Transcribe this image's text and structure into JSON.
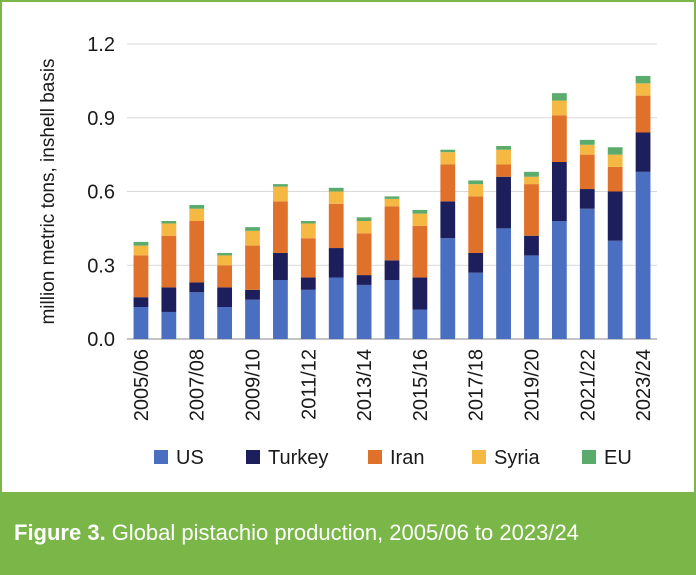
{
  "chart_data": {
    "type": "bar",
    "stacked": true,
    "categories": [
      "2005/06",
      "2006/07",
      "2007/08",
      "2008/09",
      "2009/10",
      "2010/11",
      "2011/12",
      "2012/13",
      "2013/14",
      "2014/15",
      "2015/16",
      "2016/17",
      "2017/18",
      "2018/19",
      "2019/20",
      "2020/21",
      "2021/22",
      "2022/23",
      "2023/24"
    ],
    "tick_labels_shown": [
      "2005/06",
      "2007/08",
      "2009/10",
      "2011/12",
      "2013/14",
      "2015/16",
      "2017/18",
      "2019/20",
      "2021/22",
      "2023/24"
    ],
    "series": [
      {
        "name": "US",
        "color": "#4a6fc0",
        "values": [
          0.13,
          0.11,
          0.19,
          0.13,
          0.16,
          0.24,
          0.2,
          0.25,
          0.22,
          0.24,
          0.12,
          0.41,
          0.27,
          0.45,
          0.34,
          0.48,
          0.53,
          0.4,
          0.68
        ]
      },
      {
        "name": "Turkey",
        "color": "#1c1f5c",
        "values": [
          0.04,
          0.1,
          0.04,
          0.08,
          0.04,
          0.11,
          0.05,
          0.12,
          0.04,
          0.08,
          0.13,
          0.15,
          0.08,
          0.21,
          0.08,
          0.24,
          0.08,
          0.2,
          0.16
        ]
      },
      {
        "name": "Iran",
        "color": "#e0712a",
        "values": [
          0.17,
          0.21,
          0.25,
          0.09,
          0.18,
          0.21,
          0.16,
          0.18,
          0.17,
          0.22,
          0.21,
          0.15,
          0.23,
          0.05,
          0.21,
          0.19,
          0.14,
          0.1,
          0.15
        ]
      },
      {
        "name": "Syria",
        "color": "#f5b843",
        "values": [
          0.04,
          0.05,
          0.05,
          0.04,
          0.06,
          0.06,
          0.06,
          0.05,
          0.05,
          0.03,
          0.05,
          0.05,
          0.05,
          0.06,
          0.03,
          0.06,
          0.04,
          0.05,
          0.05
        ]
      },
      {
        "name": "EU",
        "color": "#5aab6c",
        "values": [
          0.015,
          0.01,
          0.015,
          0.01,
          0.015,
          0.01,
          0.01,
          0.015,
          0.015,
          0.01,
          0.015,
          0.01,
          0.015,
          0.015,
          0.02,
          0.03,
          0.02,
          0.03,
          0.03
        ]
      }
    ],
    "y_ticks": [
      "0.0",
      "0.3",
      "0.6",
      "0.9",
      "1.2"
    ],
    "ylim": [
      0,
      1.2
    ],
    "ylabel": "million metric tons, inshell basis",
    "xlabel": "",
    "grid": true,
    "legend_position": "bottom"
  },
  "caption": {
    "label": "Figure 3.",
    "text": "Global pistachio production, 2005/06 to 2023/24"
  }
}
